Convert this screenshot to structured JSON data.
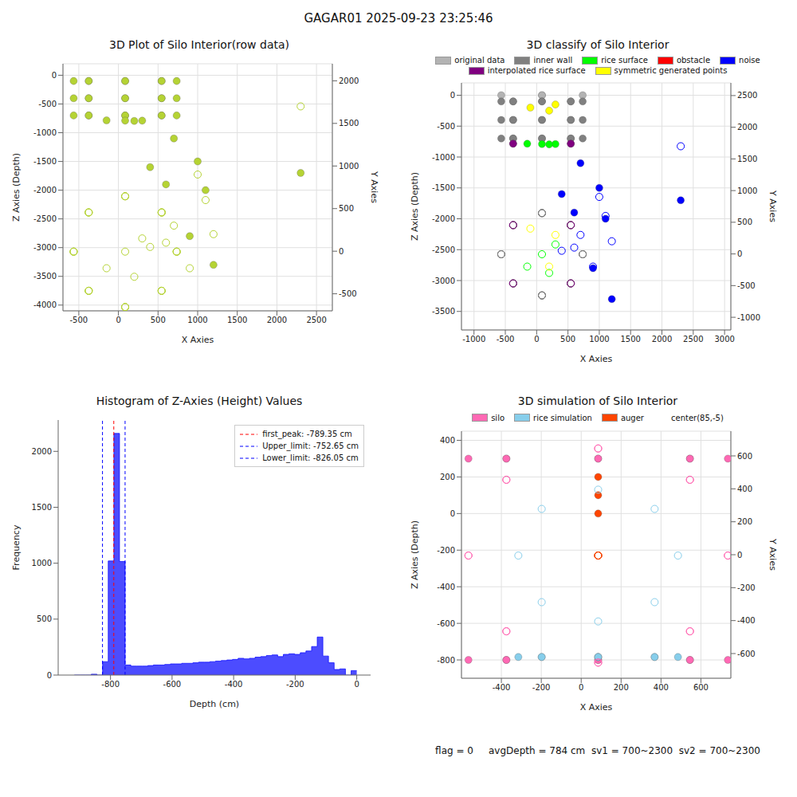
{
  "title": "GAGAR01 2025-09-23 23:25:46",
  "footer": "flag = 0     avgDepth = 784 cm  sv1 = 700~2300  sv2 = 700~2300",
  "chart_data": [
    {
      "type": "scatter3d",
      "title": "3D Plot of Silo Interior(row data)",
      "x_label": "X Axies",
      "y_label": "Y Axies",
      "z_label": "Z Axies (Depth)",
      "xlim": [
        -700,
        2700
      ],
      "xticks": [
        -500,
        0,
        500,
        1000,
        1500,
        2000,
        2500
      ],
      "ylim": [
        -700,
        2200
      ],
      "yticks": [
        -500,
        0,
        500,
        1000,
        1500,
        2000
      ],
      "zlim": [
        -4100,
        200
      ],
      "zticks": [
        -4000,
        -3500,
        -3000,
        -2500,
        -2000,
        -1500,
        -1000,
        -500,
        0
      ],
      "grid": true,
      "series": [
        {
          "color": "#b5d334",
          "marker": "circle",
          "x": [
            735,
            545,
            85,
            -375,
            -565,
            -375,
            85,
            545,
            735,
            545,
            85,
            -375,
            -565,
            -375,
            85,
            545,
            735,
            545,
            85,
            -375,
            -565,
            -375,
            85,
            545,
            85,
            300,
            -150,
            200,
            700,
            600,
            400,
            1000,
            1100,
            2300,
            900,
            1200
          ],
          "y": [
            -5,
            455,
            645,
            455,
            -5,
            -465,
            -655,
            -465,
            -5,
            455,
            645,
            455,
            -5,
            -465,
            -655,
            -465,
            -5,
            455,
            645,
            455,
            -5,
            -465,
            -655,
            -465,
            -5,
            150,
            -200,
            -300,
            300,
            100,
            50,
            900,
            600,
            1700,
            -200,
            200
          ],
          "z": [
            -100,
            -100,
            -100,
            -100,
            -100,
            -100,
            -100,
            -100,
            -400,
            -400,
            -400,
            -400,
            -400,
            -400,
            -400,
            -400,
            -700,
            -700,
            -700,
            -700,
            -700,
            -700,
            -700,
            -700,
            -790,
            -790,
            -785,
            -795,
            -1100,
            -1900,
            -1600,
            -1500,
            -2000,
            -1700,
            -2800,
            -3300
          ]
        }
      ]
    },
    {
      "type": "scatter3d",
      "title": "3D classify of Silo Interior",
      "x_label": "X Axies",
      "y_label": "Y Axies",
      "z_label": "Z Axies (Depth)",
      "xlim": [
        -1200,
        3100
      ],
      "xticks": [
        -1000,
        -500,
        0,
        500,
        1000,
        1500,
        2000,
        2500,
        3000
      ],
      "ylim": [
        -1200,
        2700
      ],
      "yticks": [
        -1000,
        -500,
        0,
        500,
        1000,
        1500,
        2000,
        2500
      ],
      "zlim": [
        -3800,
        200
      ],
      "zticks": [
        -3500,
        -3000,
        -2500,
        -2000,
        -1500,
        -1000,
        -500,
        0
      ],
      "grid": true,
      "legend": "top",
      "series": [
        {
          "name": "original data",
          "color": "#b3b3b3",
          "marker": "circle",
          "x": [
            735,
            85,
            -565,
            85
          ],
          "y": [
            -5,
            645,
            -5,
            -655
          ],
          "z": [
            0,
            0,
            0,
            0
          ]
        },
        {
          "name": "inner wall",
          "color": "#808080",
          "marker": "circle",
          "x": [
            735,
            545,
            85,
            -375,
            -565,
            -375,
            85,
            545,
            735,
            545,
            85,
            -375,
            -565,
            -375,
            85,
            545,
            735,
            545,
            85,
            -375,
            -565,
            -375,
            85,
            545
          ],
          "y": [
            -5,
            455,
            645,
            455,
            -5,
            -465,
            -655,
            -465,
            -5,
            455,
            645,
            455,
            -5,
            -465,
            -655,
            -465,
            -5,
            455,
            645,
            455,
            -5,
            -465,
            -655,
            -465
          ],
          "z": [
            -100,
            -100,
            -100,
            -100,
            -100,
            -100,
            -100,
            -100,
            -400,
            -400,
            -400,
            -400,
            -400,
            -400,
            -400,
            -400,
            -700,
            -700,
            -700,
            -700,
            -700,
            -700,
            -700,
            -700
          ]
        },
        {
          "name": "rice surface",
          "color": "#00ff00",
          "marker": "circle",
          "x": [
            85,
            300,
            -150,
            200
          ],
          "y": [
            -5,
            150,
            -200,
            -300
          ],
          "z": [
            -790,
            -790,
            -785,
            -795
          ]
        },
        {
          "name": "obstacle",
          "color": "#ff0000",
          "marker": "circle",
          "x": [],
          "y": [],
          "z": []
        },
        {
          "name": "noise",
          "color": "#0000ff",
          "marker": "circle",
          "x": [
            700,
            600,
            400,
            1000,
            1100,
            2300,
            900,
            1200
          ],
          "y": [
            300,
            100,
            50,
            900,
            600,
            1700,
            -200,
            200
          ],
          "z": [
            -1100,
            -1900,
            -1600,
            -1500,
            -2000,
            -1700,
            -2800,
            -3300
          ]
        },
        {
          "name": "interpolated rice surface",
          "color": "#800080",
          "marker": "circle",
          "x": [
            545,
            -375,
            -375,
            545
          ],
          "y": [
            455,
            455,
            -465,
            -465
          ],
          "z": [
            -784,
            -784,
            -784,
            -784
          ]
        },
        {
          "name": "symmetric generated points",
          "color": "#ffff00",
          "marker": "circle",
          "x": [
            300,
            -100,
            200
          ],
          "y": [
            300,
            400,
            -200
          ],
          "z": [
            -150,
            -200,
            -250
          ]
        }
      ]
    },
    {
      "type": "histogram",
      "title": "Histogram of Z-Axies (Height) Values",
      "x_label": "Depth (cm)",
      "y_label": "Frequency",
      "color": "#0000ff",
      "bins": [
        -917.5,
        -899.15,
        -880.8,
        -862.45,
        -844.1,
        -825.75,
        -807.4,
        -789.05,
        -770.7,
        -752.35,
        -734.0,
        -715.65,
        -697.3,
        -678.95,
        -660.6,
        -642.25,
        -623.9,
        -605.55,
        -587.2,
        -568.85,
        -550.5,
        -532.15,
        -513.8,
        -495.45,
        -477.1,
        -458.75,
        -440.4,
        -422.05,
        -403.7,
        -385.35,
        -367.0,
        -348.65,
        -330.3,
        -311.95,
        -293.6,
        -275.25,
        -256.9,
        -238.55,
        -220.2,
        -201.85,
        -183.5,
        -165.15,
        -146.8,
        -128.45,
        -110.1,
        -91.75,
        -73.4,
        -55.05,
        -36.7,
        -18.35,
        0
      ],
      "counts": [
        0,
        0,
        0,
        8,
        0,
        120,
        1020,
        2160,
        1015,
        90,
        80,
        80,
        80,
        85,
        90,
        90,
        95,
        100,
        100,
        105,
        105,
        110,
        115,
        115,
        120,
        125,
        130,
        135,
        140,
        150,
        145,
        150,
        160,
        165,
        175,
        180,
        165,
        185,
        190,
        185,
        200,
        215,
        255,
        340,
        170,
        110,
        50,
        55,
        0,
        40
      ],
      "xlim": [
        -970,
        45
      ],
      "xticks": [
        -800,
        -600,
        -400,
        -200,
        0
      ],
      "ylim": [
        0,
        2280
      ],
      "yticks": [
        0,
        500,
        1000,
        1500,
        2000
      ],
      "grid": false,
      "legend": "upper right",
      "lines": [
        {
          "value": -789.35,
          "label": "first_peak: -789.35 cm",
          "color": "#ff0000",
          "line_style": "dashed"
        },
        {
          "value": -752.65,
          "label": "Upper_limit: -752.65 cm",
          "color": "#0000ff",
          "line_style": "dashed"
        },
        {
          "value": -826.05,
          "label": "Lower_limit: -826.05 cm",
          "color": "#0000ff",
          "line_style": "dashed"
        }
      ]
    },
    {
      "type": "scatter3d",
      "title": "3D simulation of Silo Interior",
      "x_label": "X Axies",
      "y_label": "Y Axies",
      "z_label": "Z Axies (Depth)",
      "xlim": [
        -600,
        750
      ],
      "xticks": [
        -400,
        -200,
        0,
        200,
        400,
        600
      ],
      "ylim": [
        -750,
        750
      ],
      "yticks": [
        -600,
        -400,
        -200,
        0,
        200,
        400,
        600
      ],
      "zlim": [
        -900,
        450
      ],
      "zticks": [
        -800,
        -600,
        -400,
        -200,
        0,
        200,
        400
      ],
      "grid": true,
      "legend": "top",
      "annotations": [
        {
          "text": "center(85,-5)"
        }
      ],
      "series": [
        {
          "name": "silo",
          "color": "#ff69b4",
          "marker": "circle",
          "x": [
            735,
            545,
            85,
            -375,
            -565,
            -375,
            85,
            545,
            735,
            545,
            85,
            -375,
            -565,
            -375,
            85,
            545
          ],
          "y": [
            -5,
            455,
            645,
            455,
            -5,
            -465,
            -655,
            -465,
            -5,
            455,
            645,
            455,
            -5,
            -465,
            -655,
            -465
          ],
          "z": [
            300,
            300,
            300,
            300,
            300,
            300,
            300,
            300,
            -800,
            -800,
            -800,
            -800,
            -800,
            -800,
            -800,
            -800
          ]
        },
        {
          "name": "rice simulation",
          "color": "#87ceeb",
          "marker": "circle",
          "x": [
            85,
            485,
            85,
            -315,
            85,
            368,
            -198,
            -198,
            368
          ],
          "y": [
            -5,
            -5,
            395,
            -5,
            -405,
            278,
            278,
            -288,
            -288
          ],
          "z": [
            -784,
            -784,
            -784,
            -784,
            -784,
            -784,
            -784,
            -784,
            -784
          ]
        },
        {
          "name": "auger",
          "color": "#ff4500",
          "marker": "circle",
          "x": [
            85,
            85,
            85
          ],
          "y": [
            -5,
            -5,
            -5
          ],
          "z": [
            0,
            100,
            200
          ]
        }
      ]
    }
  ]
}
